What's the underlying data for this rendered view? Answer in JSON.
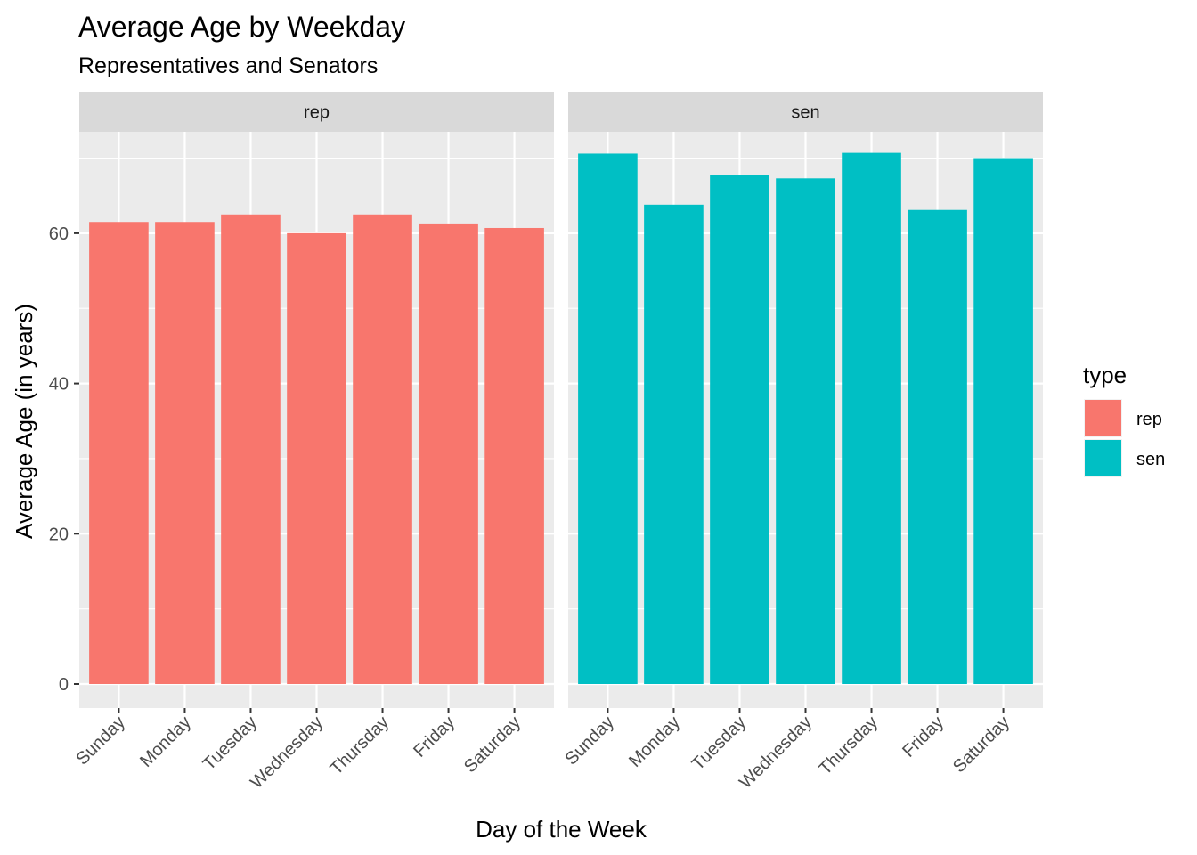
{
  "chart_data": {
    "type": "bar",
    "title": "Average Age by Weekday",
    "subtitle": "Representatives and Senators",
    "xlabel": "Day of the Week",
    "ylabel": "Average Age (in years)",
    "ylim": [
      -3.2,
      73.5
    ],
    "yticks": [
      0,
      20,
      40,
      60
    ],
    "grid": true,
    "categories": [
      "Sunday",
      "Monday",
      "Tuesday",
      "Wednesday",
      "Thursday",
      "Friday",
      "Saturday"
    ],
    "facets": [
      {
        "label": "rep",
        "color": "#F8766D",
        "values": [
          61.5,
          61.5,
          62.5,
          60.0,
          62.5,
          61.3,
          60.7
        ]
      },
      {
        "label": "sen",
        "color": "#00BFC4",
        "values": [
          70.6,
          63.8,
          67.7,
          67.3,
          70.7,
          63.1,
          70.0
        ]
      }
    ],
    "legend": {
      "title": "type",
      "placement": "right",
      "items": [
        {
          "label": "rep",
          "color": "#F8766D"
        },
        {
          "label": "sen",
          "color": "#00BFC4"
        }
      ]
    }
  }
}
